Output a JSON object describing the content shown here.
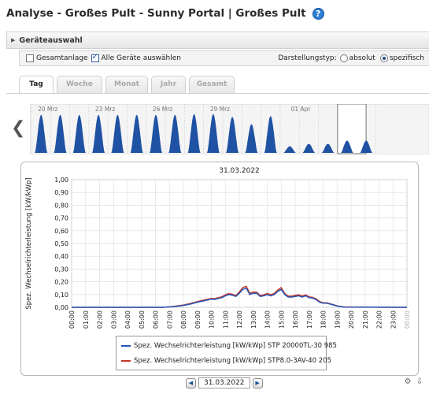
{
  "header": {
    "title": "Analyse - Großes Pult - Sunny Portal | Großes Pult",
    "help_icon": "?"
  },
  "device_section": {
    "label": "Geräteauswahl",
    "expand_icon": "▶"
  },
  "options": {
    "whole_plant": {
      "label": "Gesamtanlage",
      "checked": false
    },
    "all_devices": {
      "label": "Alle Geräte auswählen",
      "checked": true
    },
    "display_type_label": "Darstellungstyp:",
    "absolute": {
      "label": "absolut",
      "selected": false
    },
    "specific": {
      "label": "spezifisch",
      "selected": true
    }
  },
  "tabs": [
    {
      "label": "Tag",
      "active": true
    },
    {
      "label": "Woche",
      "active": false
    },
    {
      "label": "Monat",
      "active": false
    },
    {
      "label": "Jahr",
      "active": false
    },
    {
      "label": "Gesamt",
      "active": false
    }
  ],
  "overview_strip": {
    "date_labels": [
      "20 Mrz",
      "23 Mrz",
      "26 Mrz",
      "29 Mrz",
      "01 Apr"
    ],
    "day_peaks": [
      0.93,
      0.93,
      0.93,
      0.93,
      0.93,
      0.93,
      0.93,
      0.93,
      0.95,
      0.95,
      0.88,
      0.7,
      0.9,
      0.16,
      0.22,
      0.22,
      0.3,
      0.3
    ],
    "selected_day": "31.03.2022",
    "fill_color": "#1f52a3"
  },
  "chart_data": {
    "type": "line",
    "title": "31.03.2022",
    "ylabel": "Spez. Wechselrichterleistung [kW/kWp]",
    "xlabel": "",
    "ylim": [
      0,
      1
    ],
    "yticks": [
      "0,00",
      "0,10",
      "0,20",
      "0,30",
      "0,40",
      "0,50",
      "0,60",
      "0,70",
      "0,80",
      "0,90",
      "1,00"
    ],
    "x_labels": [
      "00:00",
      "01:00",
      "02:00",
      "03:00",
      "04:00",
      "05:00",
      "06:00",
      "07:00",
      "08:00",
      "09:00",
      "10:00",
      "11:00",
      "12:00",
      "13:00",
      "14:00",
      "15:00",
      "16:00",
      "17:00",
      "18:00",
      "19:00",
      "20:00",
      "21:00",
      "22:00",
      "23:00",
      "00:00"
    ],
    "grid": true,
    "series": [
      {
        "name": "Spez. Wechselrichterleistung [kW/kWp] STP 20000TL-30 985",
        "color": "#2356b8",
        "x": [
          0,
          6.5,
          7.0,
          7.5,
          8.0,
          8.5,
          9.0,
          9.5,
          10.0,
          10.25,
          10.5,
          10.75,
          11.0,
          11.25,
          11.5,
          11.75,
          12.0,
          12.25,
          12.5,
          12.75,
          13.0,
          13.25,
          13.5,
          13.75,
          14.0,
          14.25,
          14.5,
          14.75,
          15.0,
          15.25,
          15.5,
          15.75,
          16.0,
          16.25,
          16.5,
          16.75,
          17.0,
          17.25,
          17.5,
          17.75,
          18.0,
          18.25,
          18.5,
          19.0,
          19.5,
          24.0
        ],
        "y": [
          0,
          0,
          0.003,
          0.008,
          0.015,
          0.025,
          0.04,
          0.052,
          0.065,
          0.062,
          0.07,
          0.075,
          0.09,
          0.1,
          0.095,
          0.085,
          0.11,
          0.14,
          0.15,
          0.1,
          0.11,
          0.11,
          0.085,
          0.09,
          0.1,
          0.09,
          0.1,
          0.125,
          0.14,
          0.1,
          0.08,
          0.08,
          0.085,
          0.09,
          0.08,
          0.09,
          0.075,
          0.072,
          0.06,
          0.04,
          0.032,
          0.032,
          0.025,
          0.01,
          0.002,
          0
        ]
      },
      {
        "name": "Spez. Wechselrichterleistung [kW/kWp] STP8.0-3AV-40 205",
        "color": "#c8362b",
        "x": [
          0,
          6.5,
          7.0,
          7.5,
          8.0,
          8.5,
          9.0,
          9.5,
          10.0,
          10.25,
          10.5,
          10.75,
          11.0,
          11.25,
          11.5,
          11.75,
          12.0,
          12.25,
          12.5,
          12.75,
          13.0,
          13.25,
          13.5,
          13.75,
          14.0,
          14.25,
          14.5,
          14.75,
          15.0,
          15.25,
          15.5,
          15.75,
          16.0,
          16.25,
          16.5,
          16.75,
          17.0,
          17.25,
          17.5,
          17.75,
          18.0,
          18.25,
          18.5,
          19.0,
          19.5,
          24.0
        ],
        "y": [
          0,
          0,
          0.004,
          0.01,
          0.018,
          0.03,
          0.045,
          0.058,
          0.07,
          0.068,
          0.076,
          0.082,
          0.098,
          0.108,
          0.102,
          0.092,
          0.12,
          0.155,
          0.165,
          0.11,
          0.12,
          0.118,
          0.092,
          0.098,
          0.108,
          0.098,
          0.108,
          0.135,
          0.155,
          0.108,
          0.088,
          0.088,
          0.093,
          0.098,
          0.088,
          0.098,
          0.082,
          0.078,
          0.066,
          0.045,
          0.036,
          0.036,
          0.028,
          0.012,
          0.003,
          0
        ]
      }
    ]
  },
  "date_nav": {
    "prev_icon": "◀",
    "date": "31.03.2022",
    "next_icon": "▶"
  },
  "tools": {
    "settings_icon": "⚙",
    "export_icon": "⇩"
  }
}
